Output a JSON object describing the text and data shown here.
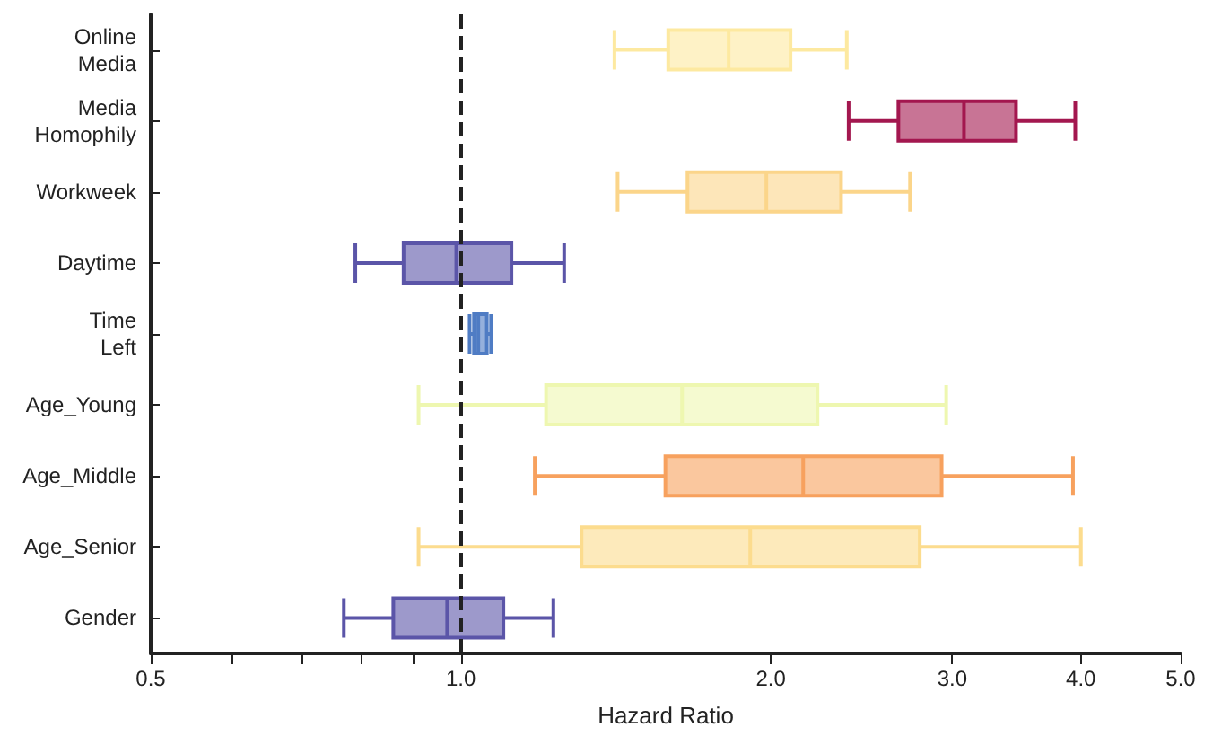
{
  "chart_data": {
    "type": "box",
    "orientation": "horizontal",
    "xlabel": "Hazard Ratio",
    "categories": [
      "Online Media",
      "Media Homophily",
      "Workweek",
      "Daytime",
      "Time Left",
      "Age_Young",
      "Age_Middle",
      "Age_Senior",
      "Gender"
    ],
    "boxes": [
      {
        "low": 1.41,
        "q1": 1.59,
        "median": 1.82,
        "q3": 2.09,
        "high": 2.37
      },
      {
        "low": 2.38,
        "q1": 2.66,
        "median": 3.08,
        "q3": 3.46,
        "high": 3.95
      },
      {
        "low": 1.42,
        "q1": 1.66,
        "median": 1.98,
        "q3": 2.34,
        "high": 2.73
      },
      {
        "low": 0.79,
        "q1": 0.88,
        "median": 0.99,
        "q3": 1.12,
        "high": 1.26
      },
      {
        "low": 1.02,
        "q1": 1.03,
        "median": 1.04,
        "q3": 1.06,
        "high": 1.07
      },
      {
        "low": 0.91,
        "q1": 1.21,
        "median": 1.64,
        "q3": 2.22,
        "high": 2.96
      },
      {
        "low": 1.18,
        "q1": 1.58,
        "median": 2.15,
        "q3": 2.93,
        "high": 3.93
      },
      {
        "low": 0.91,
        "q1": 1.31,
        "median": 1.91,
        "q3": 2.79,
        "high": 4.0
      },
      {
        "low": 0.77,
        "q1": 0.86,
        "median": 0.97,
        "q3": 1.1,
        "high": 1.23
      }
    ],
    "colors": [
      "#fde9a0",
      "#a3174f",
      "#fbd58a",
      "#5b55a8",
      "#4f7cc4",
      "#eef7b0",
      "#f7a15e",
      "#fcdc8e",
      "#5b55a8"
    ],
    "log": "x",
    "xlim": [
      0.5,
      5
    ],
    "xticks": [
      0.5,
      {
        "value": 0.6,
        "label": null
      },
      {
        "value": 0.7,
        "label": null
      },
      {
        "value": 0.8,
        "label": null
      },
      {
        "value": 0.9,
        "label": null
      },
      {
        "value": 1,
        "label": "1.0"
      },
      {
        "value": 2,
        "label": "2.0"
      },
      {
        "value": 3,
        "label": "3.0"
      },
      {
        "value": 4,
        "label": "4.0"
      },
      {
        "value": 5,
        "label": "5.0"
      }
    ],
    "ref_lines": [
      {
        "axis": "x",
        "value": 1,
        "color": "#222222",
        "line_style": "dashed"
      }
    ],
    "grid": false
  }
}
